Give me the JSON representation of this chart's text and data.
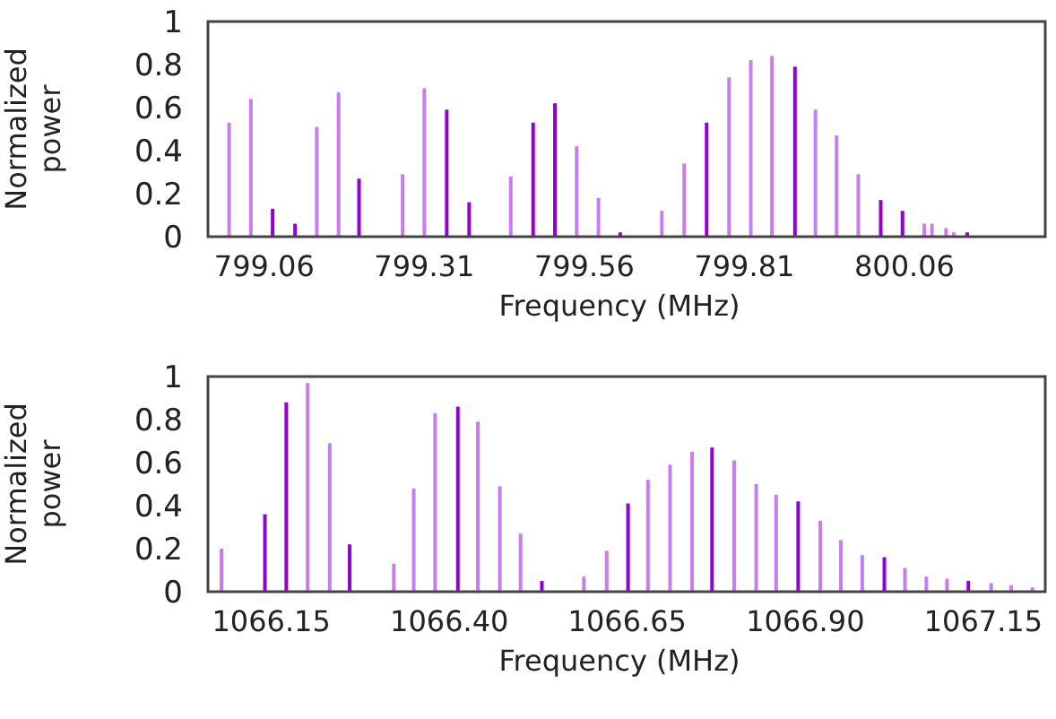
{
  "chart_data": [
    {
      "type": "bar",
      "xlabel": "Frequency (MHz)",
      "ylabel": "Normalized\npower",
      "xlim": [
        798.972,
        800.28
      ],
      "xticks": [
        799.06,
        799.31,
        799.56,
        799.81,
        800.06
      ],
      "ylim": [
        0,
        1
      ],
      "yticks": [
        0,
        0.2,
        0.4,
        0.6,
        0.8,
        1
      ],
      "x": [
        799.005,
        799.039,
        799.073,
        799.108,
        799.142,
        799.176,
        799.208,
        799.276,
        799.31,
        799.345,
        799.38,
        799.445,
        799.48,
        799.514,
        799.548,
        799.582,
        799.616,
        799.681,
        799.716,
        799.751,
        799.786,
        799.82,
        799.853,
        799.889,
        799.921,
        799.954,
        799.988,
        800.023,
        800.057,
        800.091,
        800.103,
        800.125,
        800.137,
        800.158
      ],
      "values": [
        0.53,
        0.64,
        0.13,
        0.06,
        0.51,
        0.67,
        0.27,
        0.29,
        0.69,
        0.59,
        0.16,
        0.28,
        0.53,
        0.62,
        0.42,
        0.18,
        0.02,
        0.12,
        0.34,
        0.53,
        0.74,
        0.82,
        0.84,
        0.79,
        0.59,
        0.47,
        0.29,
        0.17,
        0.12,
        0.06,
        0.06,
        0.04,
        0.02,
        0.02
      ],
      "colors": [
        "#c77cf0",
        "#c77cf0",
        "#9400d3",
        "#9400d3",
        "#c77cf0",
        "#c77cf0",
        "#9400d3",
        "#c77cf0",
        "#c77cf0",
        "#9400d3",
        "#9400d3",
        "#c77cf0",
        "#9400d3",
        "#9400d3",
        "#c77cf0",
        "#c77cf0",
        "#9400d3",
        "#c77cf0",
        "#c77cf0",
        "#9400d3",
        "#c77cf0",
        "#c77cf0",
        "#c77cf0",
        "#9400d3",
        "#c77cf0",
        "#c77cf0",
        "#c77cf0",
        "#9400d3",
        "#9400d3",
        "#c77cf0",
        "#c77cf0",
        "#c77cf0",
        "#c77cf0",
        "#9400d3"
      ]
    },
    {
      "type": "bar",
      "xlabel": "Frequency (MHz)",
      "ylabel": "Normalized\npower",
      "xlim": [
        1066.061,
        1067.237
      ],
      "xticks": [
        1066.15,
        {
          "value": 1066.4,
          "label": "1066.40"
        },
        1066.65,
        {
          "value": 1066.9,
          "label": "1066.90"
        },
        1067.15
      ],
      "ylim": [
        0,
        1
      ],
      "yticks": [
        0,
        0.2,
        0.4,
        0.6,
        0.8,
        1
      ],
      "x": [
        1066.08,
        1066.141,
        1066.171,
        1066.201,
        1066.232,
        1066.26,
        1066.322,
        1066.35,
        1066.38,
        1066.412,
        1066.44,
        1066.471,
        1066.5,
        1066.53,
        1066.589,
        1066.621,
        1066.651,
        1066.679,
        1066.71,
        1066.741,
        1066.769,
        1066.8,
        1066.831,
        1066.859,
        1066.89,
        1066.921,
        1066.95,
        1066.98,
        1067.011,
        1067.04,
        1067.07,
        1067.099,
        1067.129,
        1067.161,
        1067.189,
        1067.219
      ],
      "values": [
        0.2,
        0.36,
        0.88,
        0.97,
        0.69,
        0.22,
        0.13,
        0.48,
        0.83,
        0.86,
        0.79,
        0.49,
        0.27,
        0.05,
        0.07,
        0.19,
        0.41,
        0.52,
        0.59,
        0.65,
        0.67,
        0.61,
        0.5,
        0.45,
        0.42,
        0.33,
        0.24,
        0.17,
        0.16,
        0.11,
        0.07,
        0.06,
        0.05,
        0.04,
        0.03,
        0.02
      ],
      "colors": [
        "#c77cf0",
        "#9400d3",
        "#9400d3",
        "#c77cf0",
        "#c77cf0",
        "#9400d3",
        "#c77cf0",
        "#c77cf0",
        "#c77cf0",
        "#9400d3",
        "#c77cf0",
        "#c77cf0",
        "#c77cf0",
        "#9400d3",
        "#c77cf0",
        "#c77cf0",
        "#9400d3",
        "#c77cf0",
        "#c77cf0",
        "#c77cf0",
        "#9400d3",
        "#c77cf0",
        "#c77cf0",
        "#c77cf0",
        "#9400d3",
        "#c77cf0",
        "#c77cf0",
        "#c77cf0",
        "#9400d3",
        "#c77cf0",
        "#c77cf0",
        "#c77cf0",
        "#9400d3",
        "#c77cf0",
        "#c77cf0",
        "#c77cf0"
      ]
    }
  ]
}
